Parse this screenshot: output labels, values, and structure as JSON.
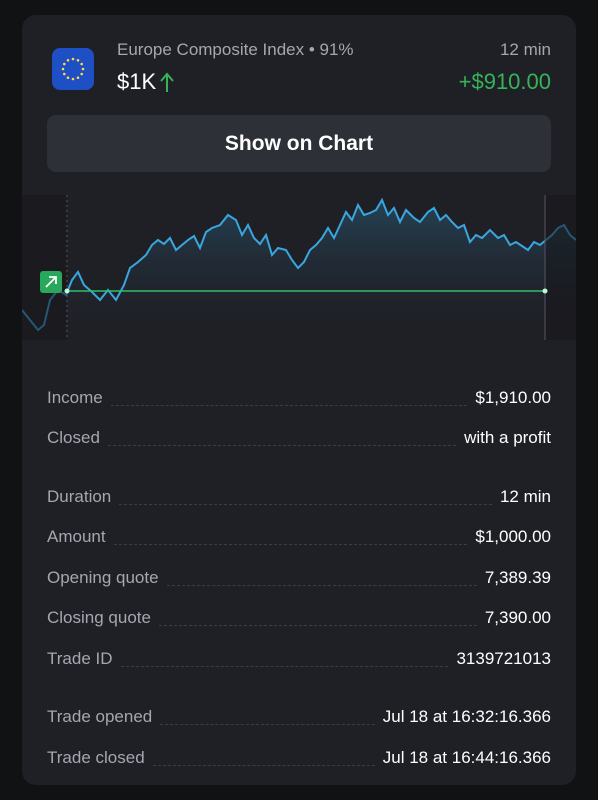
{
  "header": {
    "title": "Europe Composite Index • 91%",
    "duration": "12 min",
    "amount": "$1K",
    "profit": "+$910.00"
  },
  "button": {
    "label": "Show on Chart"
  },
  "details": {
    "groups": [
      [
        [
          "Income",
          "$1,910.00"
        ],
        [
          "Closed",
          "with a profit"
        ]
      ],
      [
        [
          "Duration",
          "12 min"
        ],
        [
          "Amount",
          "$1,000.00"
        ],
        [
          "Opening quote",
          "7,389.39"
        ],
        [
          "Closing quote",
          "7,390.00"
        ],
        [
          "Trade ID",
          "3139721013"
        ]
      ],
      [
        [
          "Trade opened",
          "Jul 18 at 16:32:16.366"
        ],
        [
          "Trade closed",
          "Jul 18 at 16:44:16.366"
        ]
      ]
    ]
  }
}
